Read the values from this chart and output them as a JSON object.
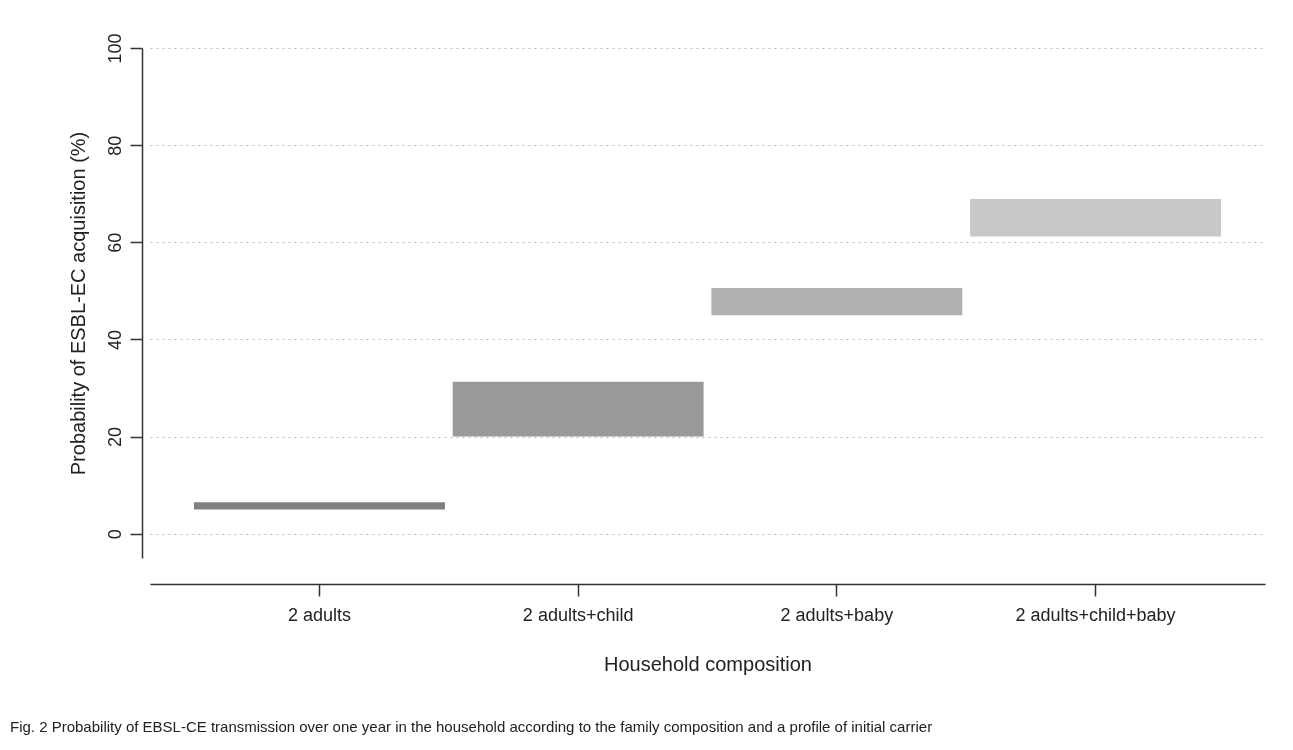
{
  "chart_data": {
    "type": "bar",
    "categories": [
      "2 adults",
      "2 adults+child",
      "2 adults+baby",
      "2 adults+child+baby"
    ],
    "base": [
      5,
      20,
      45,
      61.2
    ],
    "values": [
      1.5,
      11.3,
      5.6,
      7.7
    ],
    "colors": [
      "#808080",
      "#999999",
      "#b0b0b0",
      "#c8c8c8"
    ],
    "xlabel": "Household composition",
    "ylabel": "Probability of ESBL-EC acquisition (%)",
    "ylim": [
      -5,
      100
    ],
    "yticks": [
      0,
      20,
      40,
      60,
      80,
      100
    ],
    "grid": "y",
    "legend": false,
    "annotations": [
      "Fig. 2 Probability of EBSL-CE transmission over one year in the household according to the family composition and a profile of initial carrier"
    ]
  }
}
